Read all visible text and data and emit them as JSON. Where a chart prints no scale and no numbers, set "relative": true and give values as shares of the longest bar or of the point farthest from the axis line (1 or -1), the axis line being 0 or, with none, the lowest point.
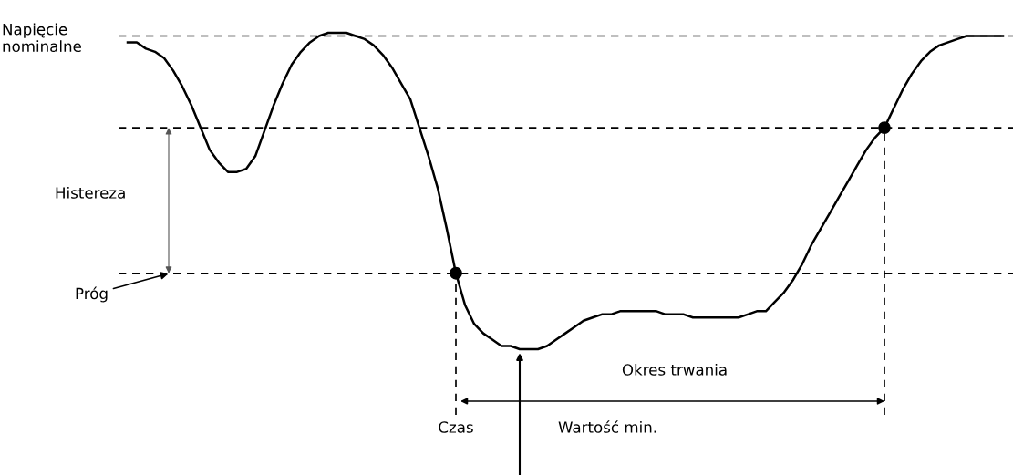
{
  "chart_data": {
    "type": "line",
    "relative": true,
    "marker": "none",
    "line_style": "solid",
    "categories": [
      null,
      null,
      null,
      null,
      null,
      null,
      null,
      null,
      null,
      null,
      null,
      null,
      null,
      null,
      null,
      null,
      null,
      null,
      null,
      null,
      null,
      null,
      null,
      null,
      null,
      null,
      null,
      null,
      null,
      null,
      null,
      null,
      null,
      null,
      null,
      null,
      null,
      null,
      null,
      null,
      null,
      null,
      null,
      null,
      null,
      null,
      null,
      null,
      null,
      null,
      null,
      null,
      null,
      null,
      null,
      null,
      null,
      null,
      null,
      null,
      null,
      null,
      null,
      null,
      null,
      null,
      null,
      null,
      null,
      null,
      null,
      null,
      null,
      null,
      null,
      null,
      null,
      null,
      null,
      null,
      null,
      null,
      null,
      null,
      null,
      null,
      null,
      null,
      null,
      null,
      null,
      null,
      null,
      null,
      null,
      null,
      null
    ],
    "series": [
      {
        "color": "#000000",
        "values": [
          0.97,
          0.97,
          0.95,
          0.94,
          0.92,
          0.88,
          0.83,
          0.77,
          0.7,
          0.63,
          0.59,
          0.56,
          0.56,
          0.57,
          0.61,
          0.69,
          0.77,
          0.84,
          0.9,
          0.94,
          0.97,
          0.99,
          1.0,
          1,
          1.0,
          0.99,
          0.98,
          0.96,
          0.93,
          0.89,
          0.84,
          0.79,
          0.7,
          0.61,
          0.51,
          0.38,
          0.24,
          0.14,
          0.08,
          0.05,
          0.03,
          0.01,
          0.01,
          0,
          0,
          0,
          0.01,
          0.03,
          0.05,
          0.07,
          0.09,
          0.1,
          0.11,
          0.11,
          0.12,
          0.12,
          0.12,
          0.12,
          0.12,
          0.11,
          0.11,
          0.11,
          0.1,
          0.1,
          0.1,
          0.1,
          0.1,
          0.1,
          0.11,
          0.12,
          0.12,
          0.15,
          0.18,
          0.22,
          0.27,
          0.33,
          0.38,
          0.43,
          0.48,
          0.53,
          0.58,
          0.63,
          0.67,
          0.7,
          0.76,
          0.82,
          0.87,
          0.91,
          0.94,
          0.96,
          0.97,
          0.98,
          0.99,
          0.99,
          0.99,
          0.99,
          0.99
        ]
      }
    ],
    "ref_lines": [
      {
        "axis": "y",
        "value": 0.99,
        "label": "Napięcie\nnominalne",
        "line_style": "dashed",
        "color": "#000000"
      },
      {
        "axis": "y",
        "value": 0.7,
        "line_style": "dashed",
        "color": "#000000"
      },
      {
        "axis": "y",
        "value": 0.24,
        "label": "Próg",
        "line_style": "dashed",
        "color": "#000000"
      }
    ],
    "annotations": [
      "Histereza",
      "Okres trwania",
      "Wartość min.",
      "Czas"
    ]
  }
}
